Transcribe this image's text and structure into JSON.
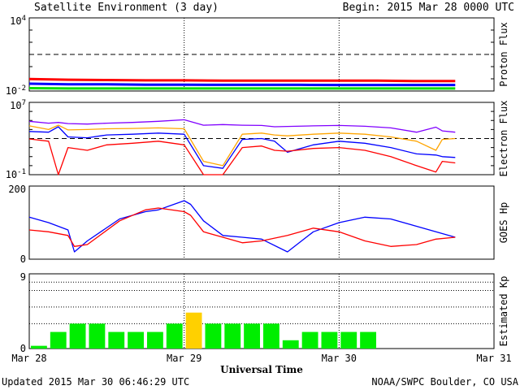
{
  "header": {
    "title": "Satellite Environment (3 day)",
    "begin": "Begin:  2015 Mar 28 0000 UTC"
  },
  "footer": {
    "updated": "Updated 2015 Mar 30 06:46:29 UTC",
    "credit": "NOAA/SWPC Boulder, CO USA"
  },
  "colors": {
    "red": "#ff0000",
    "blue": "#0000ff",
    "green": "#00e000",
    "orange": "#ffa500",
    "purple": "#8000ff",
    "kp_normal": "#00ee00",
    "kp_active": "#ffd000"
  },
  "chart_data": [
    {
      "id": "proton",
      "type": "line",
      "ylabel": "Proton Flux",
      "yscale": "log",
      "ylim": [
        0.01,
        10000
      ],
      "yticks": [
        {
          "label_base": "10",
          "label_exp": "-2",
          "value": 0.01
        },
        {
          "label_base": "10",
          "label_exp": "4",
          "value": 10000
        }
      ],
      "threshold": 10,
      "x": [
        0,
        6,
        12,
        18,
        24,
        30,
        36,
        42,
        48,
        54,
        60,
        66
      ],
      "series": [
        {
          "color": "red",
          "values": [
            0.095,
            0.085,
            0.08,
            0.075,
            0.075,
            0.07,
            0.07,
            0.07,
            0.07,
            0.07,
            0.065,
            0.065
          ]
        },
        {
          "color": "blue",
          "values": [
            0.04,
            0.035,
            0.035,
            0.033,
            0.033,
            0.032,
            0.032,
            0.032,
            0.031,
            0.031,
            0.031,
            0.031
          ]
        },
        {
          "color": "green",
          "values": [
            0.017,
            0.016,
            0.016,
            0.016,
            0.016,
            0.016,
            0.016,
            0.016,
            0.016,
            0.016,
            0.016,
            0.016
          ]
        }
      ]
    },
    {
      "id": "electron",
      "type": "line",
      "ylabel": "Electron Flux",
      "yscale": "log",
      "ylim": [
        0.1,
        10000000
      ],
      "yticks": [
        {
          "label_base": "10",
          "label_exp": "-1",
          "value": 0.1
        },
        {
          "label_base": "10",
          "label_exp": "7",
          "value": 10000000
        }
      ],
      "threshold": 1000,
      "x": [
        0,
        3,
        4.5,
        6,
        9,
        12,
        16,
        20,
        24,
        27,
        30,
        33,
        36,
        38,
        40,
        44,
        48,
        52,
        56,
        60,
        63,
        64,
        66
      ],
      "series": [
        {
          "color": "purple",
          "values": [
            80000,
            50000,
            60000,
            45000,
            40000,
            50000,
            60000,
            80000,
            120000,
            30000,
            35000,
            30000,
            28000,
            20000,
            22000,
            25000,
            28000,
            23000,
            15000,
            5000,
            18000,
            7000,
            5000
          ]
        },
        {
          "color": "orange",
          "values": [
            25000,
            10000,
            30000,
            9000,
            10000,
            12000,
            13000,
            15000,
            12000,
            3,
            1,
            3000,
            4000,
            2500,
            2000,
            3000,
            4000,
            3000,
            1500,
            500,
            50,
            800,
            1000
          ]
        },
        {
          "color": "blue",
          "values": [
            6000,
            5000,
            20000,
            1500,
            1200,
            2500,
            3000,
            4000,
            3000,
            1,
            0.5,
            800,
            1000,
            500,
            30,
            200,
            500,
            300,
            100,
            20,
            15,
            10,
            8
          ]
        },
        {
          "color": "red",
          "values": [
            900,
            500,
            0.1,
            100,
            50,
            200,
            300,
            500,
            200,
            0.1,
            0.1,
            100,
            150,
            50,
            40,
            80,
            100,
            50,
            10,
            1,
            0.2,
            3,
            2
          ]
        }
      ]
    },
    {
      "id": "goes-hp",
      "type": "line",
      "ylabel": "GOES Hp",
      "yscale": "linear",
      "ylim": [
        0,
        200
      ],
      "yticks": [
        {
          "label": "0",
          "value": 0
        },
        {
          "label": "200",
          "value": 200
        }
      ],
      "x": [
        0,
        3,
        6,
        7,
        9,
        14,
        18,
        20,
        24,
        25,
        27,
        30,
        33,
        36,
        40,
        44,
        48,
        52,
        56,
        60,
        63,
        66
      ],
      "series": [
        {
          "color": "blue",
          "values": [
            115,
            100,
            80,
            20,
            50,
            110,
            130,
            135,
            160,
            150,
            105,
            65,
            60,
            55,
            20,
            75,
            100,
            115,
            110,
            90,
            75,
            60
          ]
        },
        {
          "color": "red",
          "values": [
            80,
            75,
            65,
            35,
            40,
            105,
            135,
            140,
            130,
            120,
            75,
            60,
            45,
            50,
            65,
            85,
            75,
            50,
            35,
            40,
            55,
            60
          ]
        }
      ]
    },
    {
      "id": "kp",
      "type": "bar",
      "ylabel": "Estimated Kp",
      "yscale": "linear",
      "ylim": [
        0,
        9
      ],
      "yticks": [
        {
          "label": "0",
          "value": 0
        },
        {
          "label": "9",
          "value": 9
        }
      ],
      "bar_hours": 3,
      "values": [
        0.33,
        2,
        3,
        3,
        2,
        2,
        2,
        3,
        4.33,
        3,
        3,
        3,
        3,
        1,
        2,
        2,
        2,
        2
      ],
      "active_threshold": 4
    }
  ],
  "xaxis": {
    "label": "Universal Time",
    "range_hours": [
      0,
      72
    ],
    "ticks": [
      {
        "label": "Mar 28",
        "hour": 0
      },
      {
        "label": "Mar 29",
        "hour": 24
      },
      {
        "label": "Mar 30",
        "hour": 48
      },
      {
        "label": "Mar 31",
        "hour": 72
      }
    ]
  }
}
